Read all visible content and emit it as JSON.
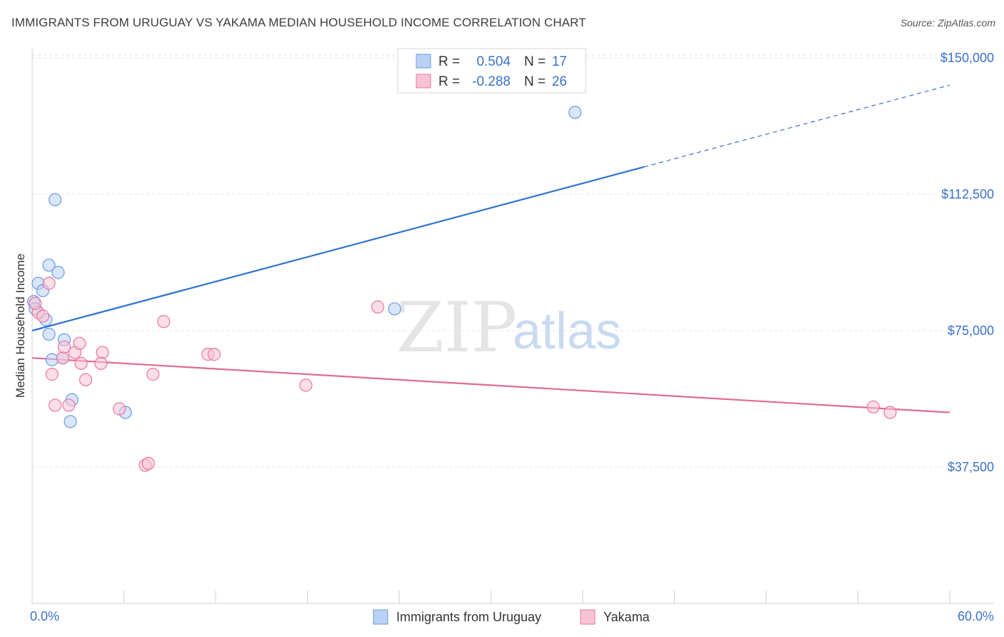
{
  "title": "IMMIGRANTS FROM URUGUAY VS YAKAMA MEDIAN HOUSEHOLD INCOME CORRELATION CHART",
  "source": "Source: ZipAtlas.com",
  "watermark": {
    "zip": "ZIP",
    "atlas": "atlas"
  },
  "legend": {
    "rows": [
      {
        "r_label": "R =",
        "r_value": "0.504",
        "n_label": "N =",
        "n_value": "17"
      },
      {
        "r_label": "R =",
        "r_value": "-0.288",
        "n_label": "N =",
        "n_value": "26"
      }
    ]
  },
  "bottom_legend": [
    "Immigrants from Uruguay",
    "Yakama"
  ],
  "chart_data": {
    "type": "scatter",
    "title": "IMMIGRANTS FROM URUGUAY VS YAKAMA MEDIAN HOUSEHOLD INCOME CORRELATION CHART",
    "xlabel": "",
    "ylabel": "Median Household Income",
    "xlim": [
      0,
      60
    ],
    "ylim": [
      0,
      157000
    ],
    "x_tick_labels": [
      "0.0%",
      "60.0%"
    ],
    "y_ticks": [
      37500,
      75000,
      112500,
      150000
    ],
    "y_tick_labels": [
      "$37,500",
      "$75,000",
      "$112,500",
      "$150,000"
    ],
    "grid": true,
    "series": [
      {
        "name": "Immigrants from Uruguay",
        "color": "#6a9be0",
        "fill": "#b9d1f4",
        "r": 0.504,
        "n": 17,
        "points": [
          [
            0.1,
            83000
          ],
          [
            0.2,
            81000
          ],
          [
            0.4,
            88000
          ],
          [
            0.7,
            86000
          ],
          [
            1.1,
            93000
          ],
          [
            1.7,
            91000
          ],
          [
            1.5,
            111000
          ],
          [
            0.9,
            78000
          ],
          [
            1.1,
            74000
          ],
          [
            2.1,
            72500
          ],
          [
            1.3,
            67000
          ],
          [
            2.0,
            67500
          ],
          [
            2.6,
            56000
          ],
          [
            2.5,
            50000
          ],
          [
            6.1,
            52500
          ],
          [
            23.7,
            81000
          ],
          [
            35.5,
            135000
          ]
        ],
        "trend": {
          "x": [
            0,
            40
          ],
          "y": [
            75000,
            120000
          ],
          "dashed_extension": {
            "x": [
              40,
              60
            ],
            "y": [
              120000,
              142500
            ]
          }
        }
      },
      {
        "name": "Yakama",
        "color": "#e8769e",
        "fill": "#f7c3d4",
        "r": -0.288,
        "n": 26,
        "points": [
          [
            0.4,
            80000
          ],
          [
            0.7,
            79000
          ],
          [
            1.1,
            88000
          ],
          [
            1.3,
            63000
          ],
          [
            1.5,
            54500
          ],
          [
            2.0,
            67500
          ],
          [
            2.1,
            70500
          ],
          [
            2.4,
            54500
          ],
          [
            2.8,
            69000
          ],
          [
            3.1,
            71500
          ],
          [
            3.2,
            66000
          ],
          [
            3.5,
            61500
          ],
          [
            4.6,
            69000
          ],
          [
            4.5,
            66000
          ],
          [
            5.7,
            53500
          ],
          [
            7.4,
            38000
          ],
          [
            7.6,
            38500
          ],
          [
            7.9,
            63000
          ],
          [
            8.6,
            77500
          ],
          [
            11.5,
            68500
          ],
          [
            11.9,
            68500
          ],
          [
            17.9,
            60000
          ],
          [
            22.6,
            81500
          ],
          [
            55.0,
            54000
          ],
          [
            56.1,
            52500
          ],
          [
            0.2,
            82500
          ]
        ],
        "trend": {
          "x": [
            0,
            60
          ],
          "y": [
            67500,
            52500
          ]
        }
      }
    ]
  }
}
